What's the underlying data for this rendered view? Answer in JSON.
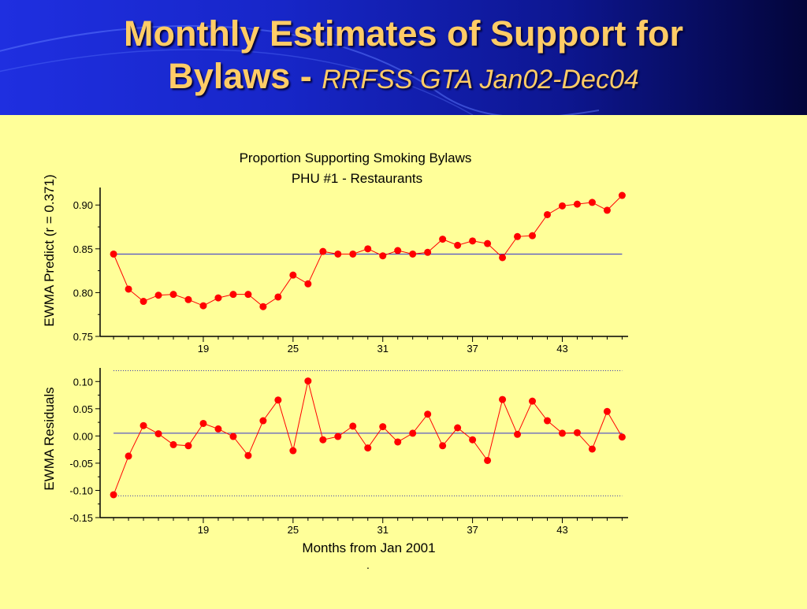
{
  "slide": {
    "title_main": "Monthly Estimates of Support for",
    "title_line2": "Bylaws - ",
    "title_sub": "RRFSS GTA Jan02-Dec04"
  },
  "colors": {
    "header_start": "#1f2fe0",
    "header_end": "#03053a",
    "title_text": "#FFCC66",
    "background": "#FFFF99",
    "series": "#FF0000",
    "reference_line": "#3333CC"
  },
  "chart_data": [
    {
      "type": "line",
      "title": "Proportion Supporting Smoking Bylaws",
      "subtitle": "PHU #1 - Restaurants",
      "xlabel": "",
      "ylabel": "EWMA Predict (r = 0.371)",
      "xlim": [
        12.1,
        47.4
      ],
      "ylim": [
        0.75,
        0.92
      ],
      "yticks": [
        "0.75",
        "0.80",
        "0.85",
        "0.90"
      ],
      "xticks": [
        "19",
        "25",
        "31",
        "37",
        "43"
      ],
      "grid": false,
      "reference_line": 0.844,
      "x": [
        13,
        14,
        15,
        16,
        17,
        18,
        19,
        20,
        21,
        22,
        23,
        24,
        25,
        26,
        27,
        28,
        29,
        30,
        31,
        32,
        33,
        34,
        35,
        36,
        37,
        38,
        39,
        40,
        41,
        42,
        43,
        44,
        45,
        46,
        47
      ],
      "values": [
        0.844,
        0.804,
        0.79,
        0.797,
        0.798,
        0.792,
        0.785,
        0.794,
        0.798,
        0.798,
        0.784,
        0.795,
        0.82,
        0.81,
        0.847,
        0.844,
        0.844,
        0.85,
        0.842,
        0.848,
        0.844,
        0.846,
        0.861,
        0.854,
        0.859,
        0.856,
        0.84,
        0.864,
        0.865,
        0.889,
        0.899,
        0.901,
        0.903,
        0.894,
        0.911
      ]
    },
    {
      "type": "line",
      "xlabel": "Months from Jan 2001",
      "ylabel": "EWMA Residuals",
      "xlim": [
        12.1,
        47.4
      ],
      "ylim": [
        -0.15,
        0.125
      ],
      "yticks": [
        "-0.15",
        "-0.10",
        "-0.05",
        "0.00",
        "0.05",
        "0.10"
      ],
      "xticks": [
        "19",
        "25",
        "31",
        "37",
        "43"
      ],
      "grid": false,
      "reference_line": 0.005,
      "control_limits": [
        0.12,
        -0.11
      ],
      "x": [
        13,
        14,
        15,
        16,
        17,
        18,
        19,
        20,
        21,
        22,
        23,
        24,
        25,
        26,
        27,
        28,
        29,
        30,
        31,
        32,
        33,
        34,
        35,
        36,
        37,
        38,
        39,
        40,
        41,
        42,
        43,
        44,
        45,
        46,
        47
      ],
      "values": [
        -0.108,
        -0.037,
        0.019,
        0.004,
        -0.016,
        -0.018,
        0.023,
        0.013,
        -0.001,
        -0.036,
        0.028,
        0.066,
        -0.027,
        0.101,
        -0.007,
        -0.001,
        0.018,
        -0.022,
        0.017,
        -0.011,
        0.005,
        0.04,
        -0.018,
        0.015,
        -0.007,
        -0.045,
        0.067,
        0.003,
        0.064,
        0.028,
        0.005,
        0.006,
        -0.024,
        0.045,
        -0.002
      ]
    }
  ],
  "footnote": "."
}
